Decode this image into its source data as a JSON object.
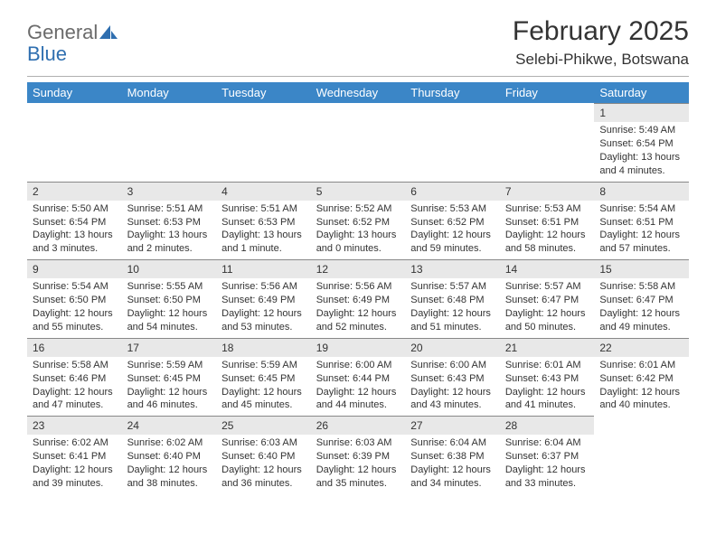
{
  "logo": {
    "word1": "General",
    "word2": "Blue"
  },
  "title": "February 2025",
  "location": "Selebi-Phikwe, Botswana",
  "colors": {
    "header_bg": "#3b86c7",
    "header_text": "#ffffff",
    "daynum_bg": "#e8e8e8",
    "border": "#888888",
    "body_text": "#333333",
    "logo_gray": "#6b6b6b",
    "logo_blue": "#2f6fb0",
    "page_bg": "#ffffff"
  },
  "day_headers": [
    "Sunday",
    "Monday",
    "Tuesday",
    "Wednesday",
    "Thursday",
    "Friday",
    "Saturday"
  ],
  "weeks": [
    [
      null,
      null,
      null,
      null,
      null,
      null,
      {
        "n": "1",
        "sr": "5:49 AM",
        "ss": "6:54 PM",
        "dl": "13 hours and 4 minutes."
      }
    ],
    [
      {
        "n": "2",
        "sr": "5:50 AM",
        "ss": "6:54 PM",
        "dl": "13 hours and 3 minutes."
      },
      {
        "n": "3",
        "sr": "5:51 AM",
        "ss": "6:53 PM",
        "dl": "13 hours and 2 minutes."
      },
      {
        "n": "4",
        "sr": "5:51 AM",
        "ss": "6:53 PM",
        "dl": "13 hours and 1 minute."
      },
      {
        "n": "5",
        "sr": "5:52 AM",
        "ss": "6:52 PM",
        "dl": "13 hours and 0 minutes."
      },
      {
        "n": "6",
        "sr": "5:53 AM",
        "ss": "6:52 PM",
        "dl": "12 hours and 59 minutes."
      },
      {
        "n": "7",
        "sr": "5:53 AM",
        "ss": "6:51 PM",
        "dl": "12 hours and 58 minutes."
      },
      {
        "n": "8",
        "sr": "5:54 AM",
        "ss": "6:51 PM",
        "dl": "12 hours and 57 minutes."
      }
    ],
    [
      {
        "n": "9",
        "sr": "5:54 AM",
        "ss": "6:50 PM",
        "dl": "12 hours and 55 minutes."
      },
      {
        "n": "10",
        "sr": "5:55 AM",
        "ss": "6:50 PM",
        "dl": "12 hours and 54 minutes."
      },
      {
        "n": "11",
        "sr": "5:56 AM",
        "ss": "6:49 PM",
        "dl": "12 hours and 53 minutes."
      },
      {
        "n": "12",
        "sr": "5:56 AM",
        "ss": "6:49 PM",
        "dl": "12 hours and 52 minutes."
      },
      {
        "n": "13",
        "sr": "5:57 AM",
        "ss": "6:48 PM",
        "dl": "12 hours and 51 minutes."
      },
      {
        "n": "14",
        "sr": "5:57 AM",
        "ss": "6:47 PM",
        "dl": "12 hours and 50 minutes."
      },
      {
        "n": "15",
        "sr": "5:58 AM",
        "ss": "6:47 PM",
        "dl": "12 hours and 49 minutes."
      }
    ],
    [
      {
        "n": "16",
        "sr": "5:58 AM",
        "ss": "6:46 PM",
        "dl": "12 hours and 47 minutes."
      },
      {
        "n": "17",
        "sr": "5:59 AM",
        "ss": "6:45 PM",
        "dl": "12 hours and 46 minutes."
      },
      {
        "n": "18",
        "sr": "5:59 AM",
        "ss": "6:45 PM",
        "dl": "12 hours and 45 minutes."
      },
      {
        "n": "19",
        "sr": "6:00 AM",
        "ss": "6:44 PM",
        "dl": "12 hours and 44 minutes."
      },
      {
        "n": "20",
        "sr": "6:00 AM",
        "ss": "6:43 PM",
        "dl": "12 hours and 43 minutes."
      },
      {
        "n": "21",
        "sr": "6:01 AM",
        "ss": "6:43 PM",
        "dl": "12 hours and 41 minutes."
      },
      {
        "n": "22",
        "sr": "6:01 AM",
        "ss": "6:42 PM",
        "dl": "12 hours and 40 minutes."
      }
    ],
    [
      {
        "n": "23",
        "sr": "6:02 AM",
        "ss": "6:41 PM",
        "dl": "12 hours and 39 minutes."
      },
      {
        "n": "24",
        "sr": "6:02 AM",
        "ss": "6:40 PM",
        "dl": "12 hours and 38 minutes."
      },
      {
        "n": "25",
        "sr": "6:03 AM",
        "ss": "6:40 PM",
        "dl": "12 hours and 36 minutes."
      },
      {
        "n": "26",
        "sr": "6:03 AM",
        "ss": "6:39 PM",
        "dl": "12 hours and 35 minutes."
      },
      {
        "n": "27",
        "sr": "6:04 AM",
        "ss": "6:38 PM",
        "dl": "12 hours and 34 minutes."
      },
      {
        "n": "28",
        "sr": "6:04 AM",
        "ss": "6:37 PM",
        "dl": "12 hours and 33 minutes."
      },
      null
    ]
  ],
  "labels": {
    "sunrise": "Sunrise:",
    "sunset": "Sunset:",
    "daylight": "Daylight:"
  }
}
